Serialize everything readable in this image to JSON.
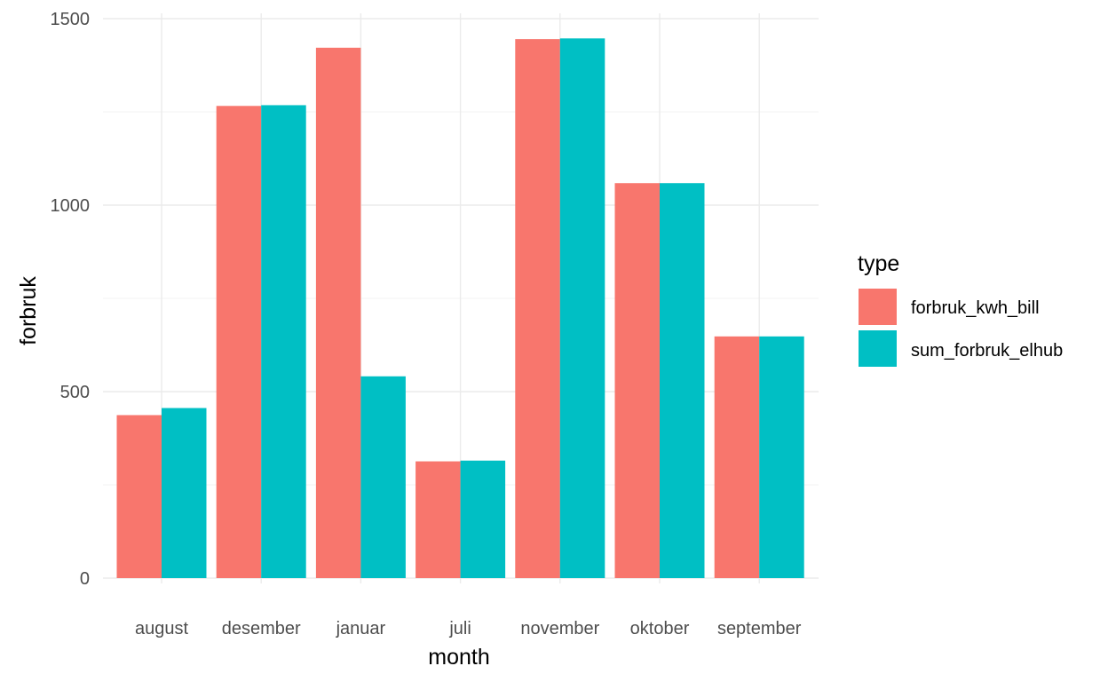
{
  "chart_data": {
    "type": "bar",
    "xlabel": "month",
    "ylabel": "forbruk",
    "ylim": [
      0,
      1500
    ],
    "y_ticks": [
      0,
      500,
      1000,
      1500
    ],
    "grid": true,
    "legend": {
      "title": "type",
      "position": "right"
    },
    "categories": [
      "august",
      "desember",
      "januar",
      "juli",
      "november",
      "oktober",
      "september"
    ],
    "series": [
      {
        "name": "forbruk_kwh_bill",
        "color": "#F8766D",
        "values": [
          437,
          1266,
          1422,
          313,
          1445,
          1059,
          648
        ]
      },
      {
        "name": "sum_forbruk_elhub",
        "color": "#00BFC4",
        "values": [
          456,
          1268,
          541,
          315,
          1447,
          1059,
          648
        ]
      }
    ]
  }
}
